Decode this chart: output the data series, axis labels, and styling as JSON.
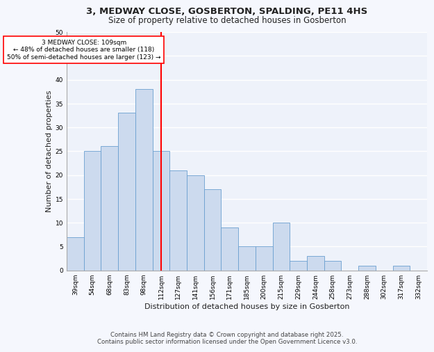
{
  "title_line1": "3, MEDWAY CLOSE, GOSBERTON, SPALDING, PE11 4HS",
  "title_line2": "Size of property relative to detached houses in Gosberton",
  "xlabel": "Distribution of detached houses by size in Gosberton",
  "ylabel": "Number of detached properties",
  "categories": [
    "39sqm",
    "54sqm",
    "68sqm",
    "83sqm",
    "98sqm",
    "112sqm",
    "127sqm",
    "141sqm",
    "156sqm",
    "171sqm",
    "185sqm",
    "200sqm",
    "215sqm",
    "229sqm",
    "244sqm",
    "258sqm",
    "273sqm",
    "288sqm",
    "302sqm",
    "317sqm",
    "332sqm"
  ],
  "values": [
    7,
    25,
    26,
    33,
    38,
    25,
    21,
    20,
    17,
    9,
    5,
    5,
    10,
    2,
    3,
    2,
    0,
    1,
    0,
    1,
    0
  ],
  "bar_color": "#ccdaee",
  "bar_edge_color": "#6a9fd0",
  "red_line_index": 5,
  "annotation_text": "3 MEDWAY CLOSE: 109sqm\n← 48% of detached houses are smaller (118)\n50% of semi-detached houses are larger (123) →",
  "annotation_fontsize": 6.5,
  "ylim": [
    0,
    50
  ],
  "yticks": [
    0,
    5,
    10,
    15,
    20,
    25,
    30,
    35,
    40,
    45,
    50
  ],
  "footer_line1": "Contains HM Land Registry data © Crown copyright and database right 2025.",
  "footer_line2": "Contains public sector information licensed under the Open Government Licence v3.0.",
  "background_color": "#eef2fa",
  "grid_color": "#ffffff",
  "fig_background": "#f5f7fd",
  "title_fontsize": 9.5,
  "subtitle_fontsize": 8.5,
  "axis_label_fontsize": 8,
  "tick_fontsize": 6.5,
  "footer_fontsize": 6.2
}
